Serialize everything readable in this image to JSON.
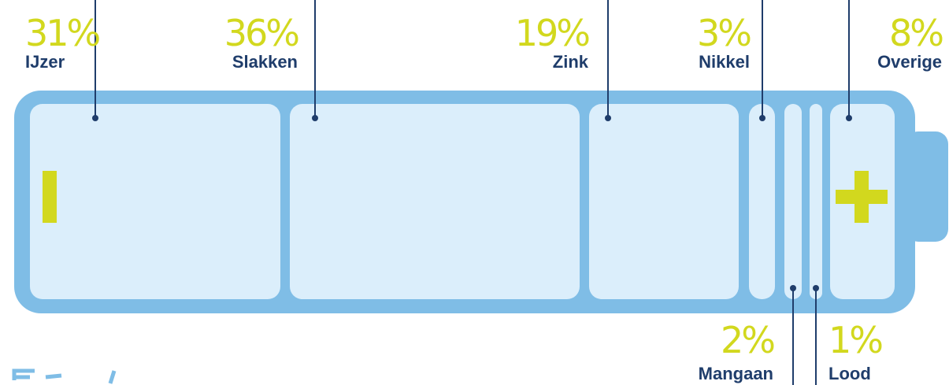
{
  "chart_data": {
    "type": "bar",
    "categories": [
      "IJzer",
      "Slakken",
      "Zink",
      "Nikkel",
      "Mangaan",
      "Lood",
      "Overige"
    ],
    "values": [
      31,
      36,
      19,
      3,
      2,
      1,
      8
    ],
    "value_labels": [
      "31%",
      "36%",
      "19%",
      "3%",
      "2%",
      "1%",
      "8%"
    ],
    "title": "",
    "xlabel": "",
    "ylabel": "",
    "ylim": [
      0,
      100
    ],
    "orientation": "horizontal-stacked",
    "negative_sign": "−",
    "positive_sign": "+",
    "colors": {
      "battery_body": "#7fbde6",
      "segment_fill": "#dbeefb",
      "label_text": "#1f3d6b",
      "percent_text": "#d2d81e",
      "leader_line": "#1f3d6b",
      "sign": "#d2d81e",
      "partial_text": "#7fbde6"
    }
  }
}
